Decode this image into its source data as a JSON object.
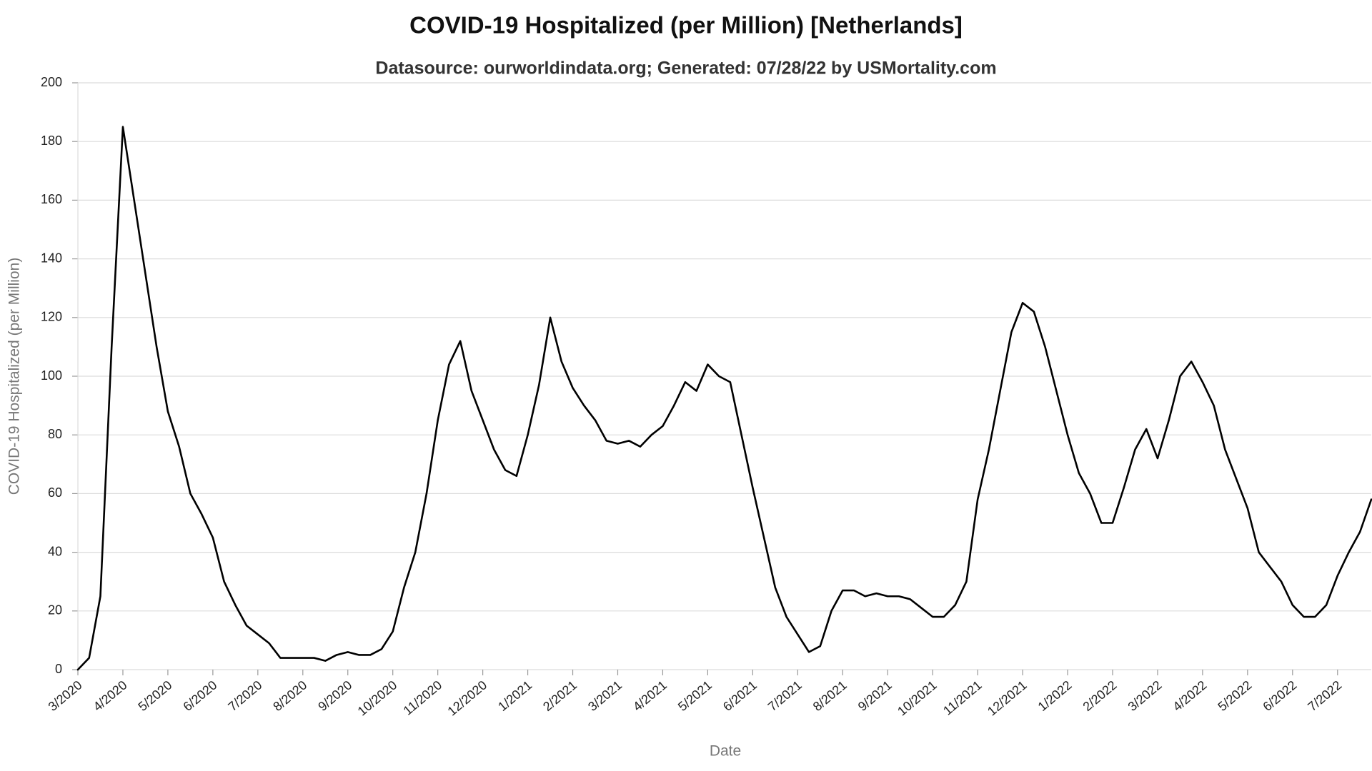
{
  "chart_data": {
    "type": "line",
    "title": "COVID-19 Hospitalized (per Million) [Netherlands]",
    "subtitle": "Datasource: ourworldindata.org; Generated: 07/28/22 by USMortality.com",
    "x_label": "Date",
    "y_label": "COVID-19 Hospitalized (per Million)",
    "color": "#000000",
    "grid": true,
    "ylim": [
      0,
      200
    ],
    "yticks": [
      0,
      20,
      40,
      60,
      80,
      100,
      120,
      140,
      160,
      180,
      200
    ],
    "categories": [
      "3/2020",
      null,
      null,
      null,
      "4/2020",
      null,
      null,
      null,
      "5/2020",
      null,
      null,
      null,
      "6/2020",
      null,
      null,
      null,
      "7/2020",
      null,
      null,
      null,
      "8/2020",
      null,
      null,
      null,
      "9/2020",
      null,
      null,
      null,
      "10/2020",
      null,
      null,
      null,
      "11/2020",
      null,
      null,
      null,
      "12/2020",
      null,
      null,
      null,
      "1/2021",
      null,
      null,
      null,
      "2/2021",
      null,
      null,
      null,
      "3/2021",
      null,
      null,
      null,
      "4/2021",
      null,
      null,
      null,
      "5/2021",
      null,
      null,
      null,
      "6/2021",
      null,
      null,
      null,
      "7/2021",
      null,
      null,
      null,
      "8/2021",
      null,
      null,
      null,
      "9/2021",
      null,
      null,
      null,
      "10/2021",
      null,
      null,
      null,
      "11/2021",
      null,
      null,
      null,
      "12/2021",
      null,
      null,
      null,
      "1/2022",
      null,
      null,
      null,
      "2/2022",
      null,
      null,
      null,
      "3/2022",
      null,
      null,
      null,
      "4/2022",
      null,
      null,
      null,
      "5/2022",
      null,
      null,
      null,
      "6/2022",
      null,
      null,
      null,
      "7/2022",
      null,
      null,
      null
    ],
    "values": [
      0,
      4,
      25,
      110,
      185,
      160,
      135,
      110,
      88,
      76,
      60,
      53,
      45,
      30,
      22,
      15,
      12,
      9,
      4,
      4,
      4,
      4,
      3,
      5,
      6,
      5,
      5,
      7,
      13,
      28,
      40,
      60,
      85,
      104,
      112,
      95,
      85,
      75,
      68,
      66,
      80,
      97,
      120,
      105,
      96,
      90,
      85,
      78,
      77,
      78,
      76,
      80,
      83,
      90,
      98,
      95,
      104,
      100,
      98,
      80,
      62,
      45,
      28,
      18,
      12,
      6,
      8,
      20,
      27,
      27,
      25,
      26,
      25,
      25,
      24,
      21,
      18,
      18,
      22,
      30,
      58,
      75,
      95,
      115,
      125,
      122,
      110,
      95,
      80,
      67,
      60,
      50,
      50,
      62,
      75,
      82,
      72,
      85,
      100,
      105,
      98,
      90,
      75,
      65,
      55,
      40,
      35,
      30,
      22,
      18,
      18,
      22,
      32,
      40,
      47,
      58
    ]
  }
}
